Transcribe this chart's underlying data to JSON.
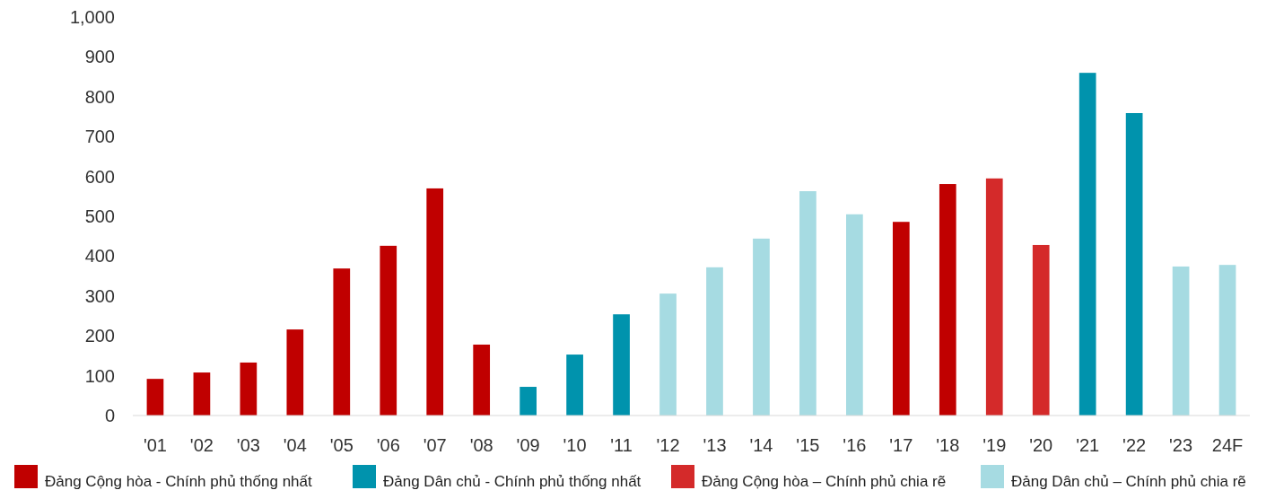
{
  "chart_data": {
    "type": "bar",
    "categories": [
      "'01",
      "'02",
      "'03",
      "'04",
      "'05",
      "'06",
      "'07",
      "'08",
      "'09",
      "'10",
      "'11",
      "'12",
      "'13",
      "'14",
      "'15",
      "'16",
      "'17",
      "'18",
      "'19",
      "'20",
      "'21",
      "'22",
      "'23",
      "24F"
    ],
    "series": [
      {
        "name": "Đảng Cộng hòa - Chính phủ thống nhất",
        "color": "#c00000",
        "values": [
          92,
          108,
          133,
          216,
          369,
          426,
          570,
          178,
          null,
          null,
          null,
          null,
          null,
          null,
          null,
          null,
          486,
          581,
          null,
          null,
          null,
          null,
          null,
          null
        ]
      },
      {
        "name": "Đảng Dân chủ - Chính phủ thống nhất",
        "color": "#0093ad",
        "values": [
          null,
          null,
          null,
          null,
          null,
          null,
          null,
          null,
          72,
          153,
          254,
          null,
          null,
          null,
          null,
          null,
          null,
          null,
          null,
          null,
          860,
          759,
          null,
          null
        ]
      },
      {
        "name": "Đảng Cộng hòa – Chính phủ chia rẽ",
        "color": "#d42a2a",
        "values": [
          null,
          null,
          null,
          null,
          null,
          null,
          null,
          null,
          null,
          null,
          null,
          null,
          null,
          null,
          null,
          null,
          null,
          null,
          595,
          428,
          null,
          null,
          null,
          null
        ]
      },
      {
        "name": "Đảng Dân chủ – Chính phủ chia rẽ",
        "color": "#a6dbe2",
        "values": [
          null,
          null,
          null,
          null,
          null,
          null,
          null,
          null,
          null,
          null,
          null,
          306,
          372,
          444,
          563,
          505,
          null,
          null,
          null,
          null,
          null,
          null,
          374,
          378
        ]
      }
    ],
    "ylim": [
      0,
      1000
    ],
    "yticks": [
      0,
      100,
      200,
      300,
      400,
      500,
      600,
      700,
      800,
      900,
      {
        "value": 1000,
        "label": "1,000"
      }
    ],
    "grid": false,
    "legend": "bottom"
  }
}
